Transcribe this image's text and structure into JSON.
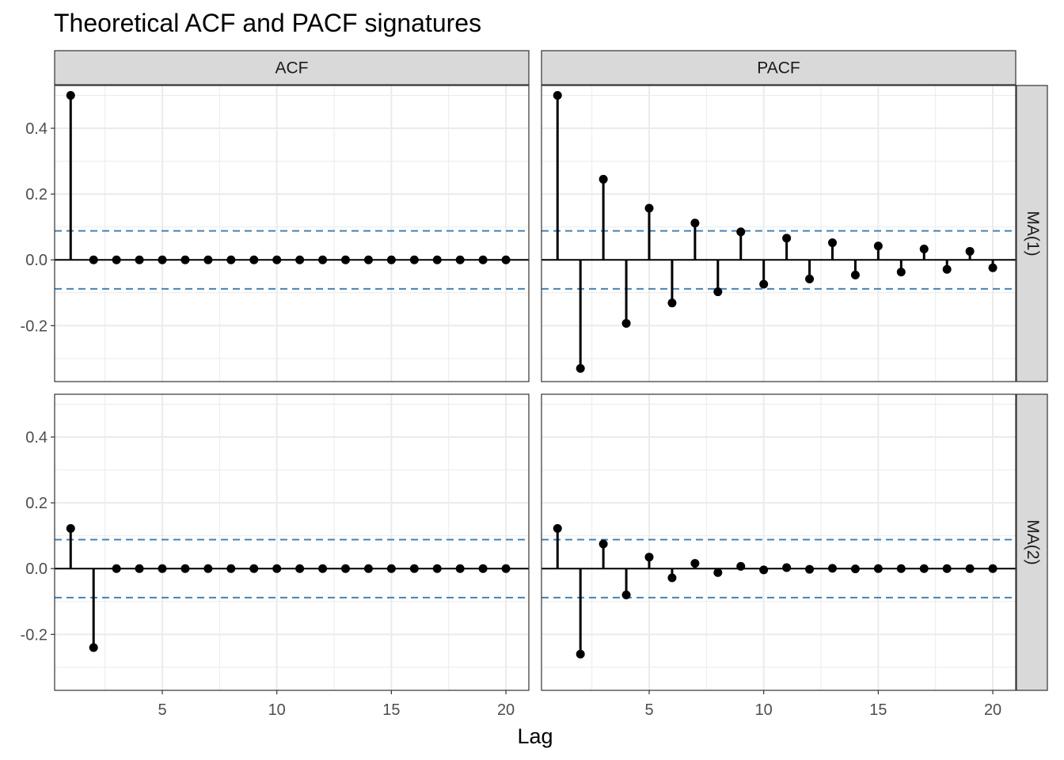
{
  "chart_data": {
    "type": "stem",
    "title": "Theoretical ACF and PACF signatures",
    "xlabel": "Lag",
    "ylabel": "",
    "columns": [
      "ACF",
      "PACF"
    ],
    "rows": [
      "MA(1)",
      "MA(2)"
    ],
    "xlim": [
      0.3,
      21
    ],
    "ylim": [
      -0.37,
      0.53
    ],
    "x_ticks": [
      5,
      10,
      15,
      20
    ],
    "y_ticks": [
      -0.2,
      0.0,
      0.2,
      0.4
    ],
    "y_tick_labels": [
      "-0.2",
      "0.0",
      "0.2",
      "0.4"
    ],
    "lags": [
      1,
      2,
      3,
      4,
      5,
      6,
      7,
      8,
      9,
      10,
      11,
      12,
      13,
      14,
      15,
      16,
      17,
      18,
      19,
      20
    ],
    "confidence_bound": 0.088,
    "confidence_color": "#4682b4",
    "grid": true,
    "panels": [
      {
        "row": "MA(1)",
        "col": "ACF",
        "values": [
          0.5,
          0,
          0,
          0,
          0,
          0,
          0,
          0,
          0,
          0,
          0,
          0,
          0,
          0,
          0,
          0,
          0,
          0,
          0,
          0
        ]
      },
      {
        "row": "MA(1)",
        "col": "PACF",
        "values": [
          0.5,
          -0.33,
          0.245,
          -0.193,
          0.157,
          -0.131,
          0.112,
          -0.097,
          0.085,
          -0.074,
          0.066,
          -0.058,
          0.052,
          -0.046,
          0.042,
          -0.037,
          0.033,
          -0.029,
          0.026,
          -0.024
        ]
      },
      {
        "row": "MA(2)",
        "col": "ACF",
        "values": [
          0.122,
          -0.24,
          0,
          0,
          0,
          0,
          0,
          0,
          0,
          0,
          0,
          0,
          0,
          0,
          0,
          0,
          0,
          0,
          0,
          0
        ]
      },
      {
        "row": "MA(2)",
        "col": "PACF",
        "values": [
          0.122,
          -0.26,
          0.075,
          -0.08,
          0.035,
          -0.028,
          0.016,
          -0.012,
          0.007,
          -0.004,
          0.003,
          -0.002,
          0.001,
          -0.001,
          0,
          0,
          0,
          0,
          0,
          0
        ]
      }
    ]
  }
}
